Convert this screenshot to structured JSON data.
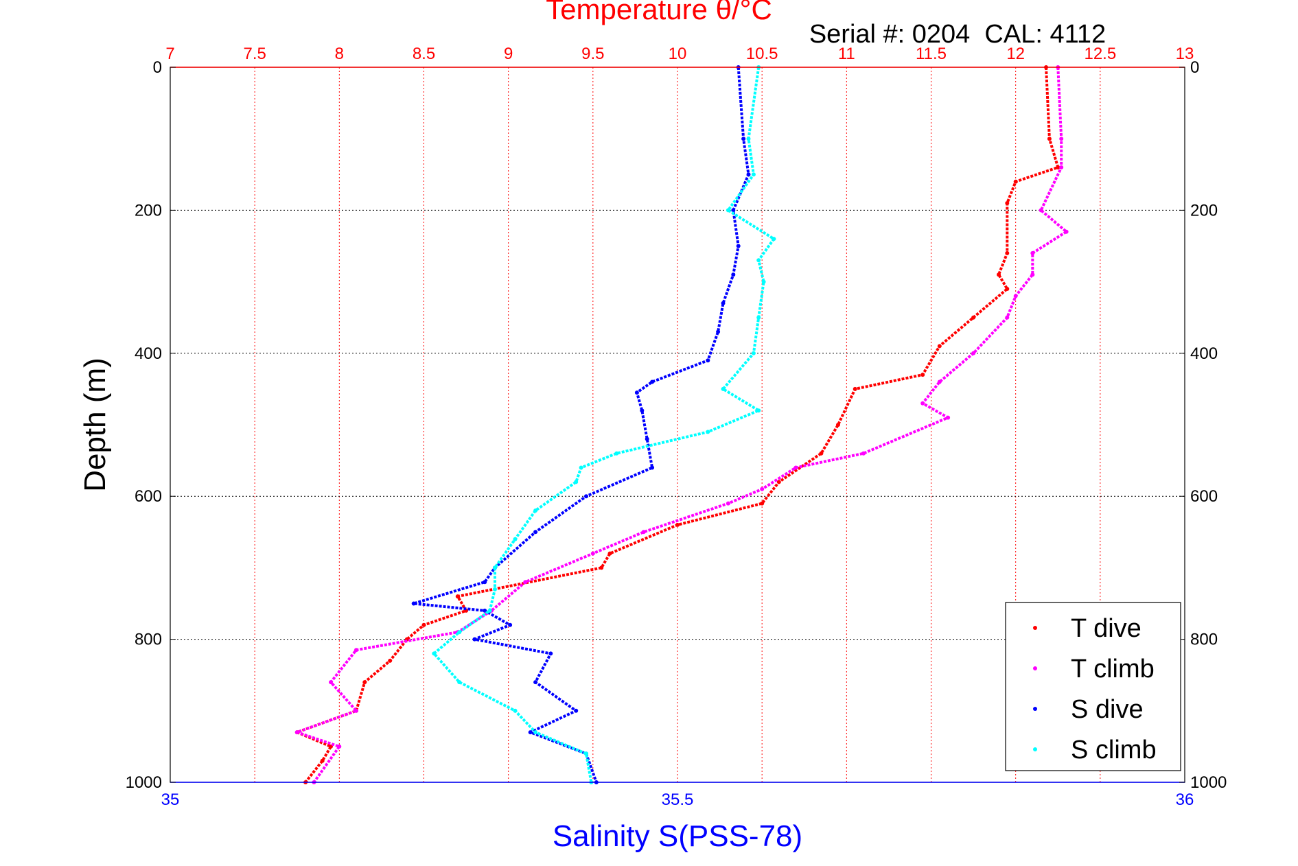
{
  "chart_data": {
    "type": "scatter",
    "title": "Temperature θ/°C",
    "subtitle": "Serial #: 0204  CAL: 4112",
    "ylabel": "Depth (m)",
    "xlabel": "Salinity S(PSS-78)",
    "top_axis": {
      "min": 7,
      "max": 13,
      "ticks": [
        "7",
        "7.5",
        "8",
        "8.5",
        "9",
        "9.5",
        "10",
        "10.5",
        "11",
        "11.5",
        "12",
        "12.5",
        "13"
      ]
    },
    "bottom_axis": {
      "min": 35,
      "max": 36,
      "ticks": [
        "35",
        "35.5",
        "36"
      ]
    },
    "y_axis": {
      "min": 0,
      "max": 1000,
      "reversed": true,
      "ticks": [
        "0",
        "200",
        "400",
        "600",
        "800",
        "1000"
      ]
    },
    "grid": true,
    "legend_position": "bottom-right",
    "colors": {
      "t_dive": "#ff0000",
      "t_climb": "#ff00ff",
      "s_dive": "#0000ff",
      "s_climb": "#00ffff",
      "top_axis": "#ff0000",
      "bottom_axis": "#0000ff"
    },
    "series": [
      {
        "name": "T dive",
        "axis": "temperature",
        "depth": [
          0,
          100,
          140,
          160,
          190,
          260,
          290,
          310,
          350,
          390,
          430,
          450,
          500,
          540,
          580,
          610,
          640,
          680,
          700,
          740,
          760,
          780,
          800,
          830,
          860,
          900,
          930,
          950,
          970,
          1000
        ],
        "values": [
          12.18,
          12.2,
          12.25,
          12.0,
          11.95,
          11.95,
          11.9,
          11.95,
          11.75,
          11.55,
          11.45,
          11.05,
          10.95,
          10.85,
          10.6,
          10.5,
          10.0,
          9.6,
          9.55,
          8.7,
          8.75,
          8.5,
          8.4,
          8.3,
          8.15,
          8.1,
          7.75,
          7.95,
          7.9,
          7.8
        ]
      },
      {
        "name": "T climb",
        "axis": "temperature",
        "depth": [
          0,
          100,
          140,
          200,
          230,
          260,
          290,
          320,
          350,
          400,
          440,
          470,
          490,
          540,
          560,
          590,
          610,
          650,
          680,
          720,
          760,
          790,
          815,
          860,
          900,
          930,
          950,
          1000
        ],
        "values": [
          12.25,
          12.27,
          12.27,
          12.15,
          12.3,
          12.1,
          12.1,
          12.0,
          11.95,
          11.75,
          11.55,
          11.45,
          11.6,
          11.1,
          10.7,
          10.5,
          10.3,
          9.8,
          9.5,
          9.1,
          8.9,
          8.7,
          8.1,
          7.95,
          8.1,
          7.75,
          8.0,
          7.85
        ]
      },
      {
        "name": "S dive",
        "axis": "salinity",
        "depth": [
          0,
          100,
          150,
          200,
          250,
          290,
          330,
          370,
          410,
          440,
          455,
          480,
          520,
          560,
          600,
          650,
          700,
          720,
          750,
          760,
          780,
          800,
          820,
          860,
          900,
          930,
          960,
          1000
        ],
        "values": [
          35.56,
          35.565,
          35.57,
          35.555,
          35.56,
          35.555,
          35.545,
          35.54,
          35.53,
          35.475,
          35.46,
          35.465,
          35.47,
          35.475,
          35.41,
          35.36,
          35.32,
          35.31,
          35.24,
          35.31,
          35.335,
          35.3,
          35.375,
          35.36,
          35.4,
          35.355,
          35.41,
          35.42
        ]
      },
      {
        "name": "S climb",
        "axis": "salinity",
        "depth": [
          0,
          100,
          150,
          200,
          240,
          270,
          300,
          350,
          400,
          450,
          480,
          510,
          540,
          560,
          580,
          620,
          660,
          700,
          730,
          760,
          790,
          820,
          860,
          900,
          930,
          960,
          1000
        ],
        "values": [
          35.58,
          35.57,
          35.575,
          35.55,
          35.595,
          35.58,
          35.585,
          35.58,
          35.575,
          35.545,
          35.58,
          35.53,
          35.44,
          35.405,
          35.4,
          35.36,
          35.34,
          35.32,
          35.32,
          35.315,
          35.285,
          35.26,
          35.285,
          35.34,
          35.36,
          35.41,
          35.415
        ]
      }
    ]
  }
}
